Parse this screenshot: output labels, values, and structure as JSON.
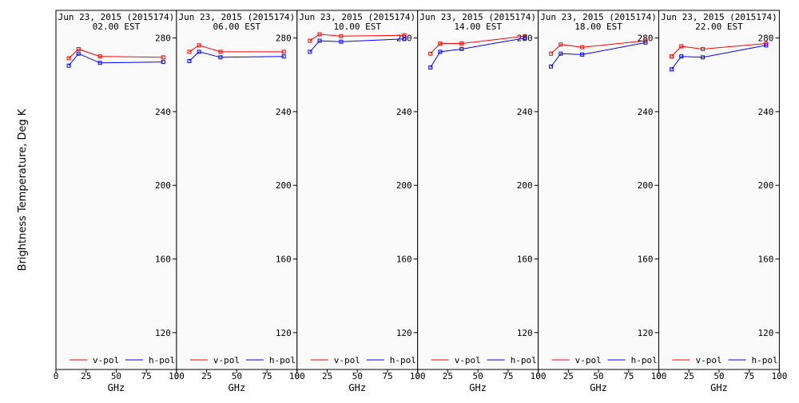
{
  "figure": {
    "ylabel": "Brightness Temperature, Deg K",
    "xlabel": "GHz"
  },
  "chart_data": [
    {
      "type": "line",
      "title": "Jun 23, 2015 (2015174)",
      "subtitle": "02.00 EST",
      "xlabel": "GHz",
      "ylabel": "Brightness Temperature, Deg K",
      "xlim": [
        0,
        100
      ],
      "ylim": [
        100,
        295
      ],
      "xticks": [
        "0",
        "25",
        "50",
        "75",
        "100"
      ],
      "yticks": [
        "280",
        "240",
        "200",
        "160",
        "120"
      ],
      "legend": "bottom",
      "x": [
        10.65,
        18.7,
        36.5,
        89
      ],
      "series": [
        {
          "name": "v-pol",
          "color": "#ff0000",
          "values": [
            269,
            274,
            270,
            269.5
          ]
        },
        {
          "name": "h-pol",
          "color": "#0000ff",
          "values": [
            265,
            271.5,
            266.5,
            267
          ]
        }
      ]
    },
    {
      "type": "line",
      "title": "Jun 23, 2015 (2015174)",
      "subtitle": "06.00 EST",
      "xlabel": "GHz",
      "xlim": [
        0,
        100
      ],
      "ylim": [
        100,
        295
      ],
      "xticks": [
        "0",
        "25",
        "50",
        "75",
        "100"
      ],
      "yticks": [
        "280",
        "240",
        "200",
        "160",
        "120"
      ],
      "legend": "bottom",
      "x": [
        10.65,
        18.7,
        36.5,
        89
      ],
      "series": [
        {
          "name": "v-pol",
          "color": "#ff0000",
          "values": [
            272.5,
            276,
            272.5,
            272.5
          ]
        },
        {
          "name": "h-pol",
          "color": "#0000ff",
          "values": [
            267.5,
            272.5,
            269.5,
            270
          ]
        }
      ]
    },
    {
      "type": "line",
      "title": "Jun 23, 2015 (2015174)",
      "subtitle": "10.00 EST",
      "xlabel": "GHz",
      "xlim": [
        0,
        100
      ],
      "ylim": [
        100,
        295
      ],
      "xticks": [
        "0",
        "25",
        "50",
        "75",
        "100"
      ],
      "yticks": [
        "280",
        "240",
        "200",
        "160",
        "120"
      ],
      "legend": "bottom",
      "x": [
        10.65,
        18.7,
        36.5,
        89
      ],
      "series": [
        {
          "name": "v-pol",
          "color": "#ff0000",
          "values": [
            278.5,
            282,
            281,
            281.5
          ]
        },
        {
          "name": "h-pol",
          "color": "#0000ff",
          "values": [
            272.5,
            278.5,
            278,
            279.5
          ]
        }
      ]
    },
    {
      "type": "line",
      "title": "Jun 23, 2015 (2015174)",
      "subtitle": "14.00 EST",
      "xlabel": "GHz",
      "xlim": [
        0,
        100
      ],
      "ylim": [
        100,
        295
      ],
      "xticks": [
        "0",
        "25",
        "50",
        "75",
        "100"
      ],
      "yticks": [
        "280",
        "240",
        "200",
        "160",
        "120"
      ],
      "legend": "bottom",
      "x": [
        10.65,
        18.7,
        36.5,
        89
      ],
      "series": [
        {
          "name": "v-pol",
          "color": "#ff0000",
          "values": [
            271.5,
            277,
            277,
            281
          ]
        },
        {
          "name": "h-pol",
          "color": "#0000ff",
          "values": [
            264,
            272.5,
            274,
            280
          ]
        }
      ]
    },
    {
      "type": "line",
      "title": "Jun 23, 2015 (2015174)",
      "subtitle": "18.00 EST",
      "xlabel": "GHz",
      "xlim": [
        0,
        100
      ],
      "ylim": [
        100,
        295
      ],
      "xticks": [
        "0",
        "25",
        "50",
        "75",
        "100"
      ],
      "yticks": [
        "280",
        "240",
        "200",
        "160",
        "120"
      ],
      "legend": "bottom",
      "x": [
        10.65,
        18.7,
        36.5,
        89
      ],
      "series": [
        {
          "name": "v-pol",
          "color": "#ff0000",
          "values": [
            271.5,
            276.5,
            275,
            278.5
          ]
        },
        {
          "name": "h-pol",
          "color": "#0000ff",
          "values": [
            264.5,
            271.5,
            271,
            277.5
          ]
        }
      ]
    },
    {
      "type": "line",
      "title": "Jun 23, 2015 (2015174)",
      "subtitle": "22.00 EST",
      "xlabel": "GHz",
      "xlim": [
        0,
        100
      ],
      "ylim": [
        100,
        295
      ],
      "xticks": [
        "0",
        "25",
        "50",
        "75",
        "100"
      ],
      "yticks": [
        "280",
        "240",
        "200",
        "160",
        "120"
      ],
      "legend": "bottom",
      "x": [
        10.65,
        18.7,
        36.5,
        89
      ],
      "series": [
        {
          "name": "v-pol",
          "color": "#ff0000",
          "values": [
            270,
            275.5,
            274,
            277
          ]
        },
        {
          "name": "h-pol",
          "color": "#0000ff",
          "values": [
            263,
            270,
            269.5,
            276
          ]
        }
      ]
    }
  ]
}
